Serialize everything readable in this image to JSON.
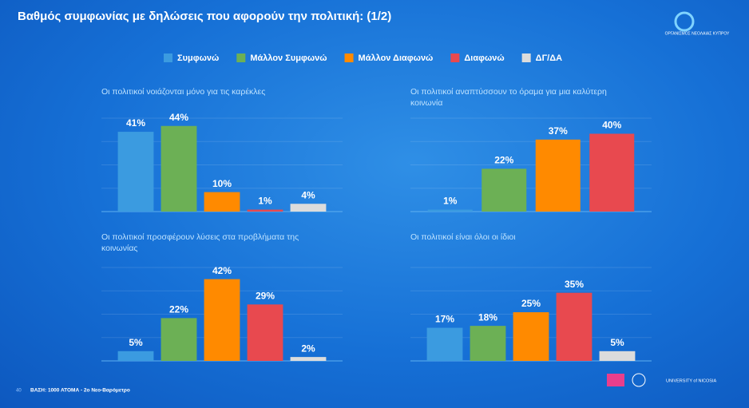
{
  "title": "Βαθμός συμφωνίας με δηλώσεις που αφορούν την πολιτική: (1/2)",
  "logo_text": "ΟΡΓΑΝΙΣΜΟΣ ΝΕΟΛΑΙΑΣ ΚΥΠΡΟΥ",
  "legend": {
    "series": [
      {
        "name": "Συμφωνώ",
        "color": "#3b9be0"
      },
      {
        "name": "Μάλλον Συμφωνώ",
        "color": "#6cb055"
      },
      {
        "name": "Μάλλον Διαφωνώ",
        "color": "#ff8a00"
      },
      {
        "name": "Διαφωνώ",
        "color": "#e8494f"
      },
      {
        "name": "ΔΓ/ΔΑ",
        "color": "#dcdcdc"
      }
    ]
  },
  "chart_data": [
    {
      "type": "bar",
      "title": "Οι πολιτικοί νοιάζονται μόνο για τις καρέκλες",
      "values": [
        41,
        44,
        10,
        1,
        4
      ],
      "value_labels": [
        "41%",
        "44%",
        "10%",
        "1%",
        "4%"
      ],
      "ylim": [
        0,
        48
      ],
      "yticks": [
        0,
        12,
        24,
        36,
        48
      ],
      "grid": true
    },
    {
      "type": "bar",
      "title": "Οι πολιτικοί αναπτύσσουν το όραμα για μια καλύτερη κοινωνία",
      "values": [
        1,
        22,
        37,
        40
      ],
      "value_labels": [
        "1%",
        "22%",
        "37%",
        "40%"
      ],
      "ylim": [
        0,
        48
      ],
      "yticks": [
        0,
        12,
        24,
        36,
        48
      ],
      "grid": true
    },
    {
      "type": "bar",
      "title": "Οι πολιτικοί προσφέρουν λύσεις στα προβλήματα της κοινωνίας",
      "values": [
        5,
        22,
        42,
        29,
        2
      ],
      "value_labels": [
        "5%",
        "22%",
        "42%",
        "29%",
        "2%"
      ],
      "ylim": [
        0,
        48
      ],
      "yticks": [
        0,
        12,
        24,
        36,
        48
      ],
      "grid": true
    },
    {
      "type": "bar",
      "title": "Οι πολιτικοί είναι όλοι οι ίδιοι",
      "values": [
        17,
        18,
        25,
        35,
        5
      ],
      "value_labels": [
        "17%",
        "18%",
        "25%",
        "35%",
        "5%"
      ],
      "ylim": [
        0,
        48
      ],
      "yticks": [
        0,
        12,
        24,
        36,
        48
      ],
      "grid": true
    }
  ],
  "footer": {
    "page": "40",
    "base": "ΒΑΣΗ: 1000 ΑΤΟΜΑ - 2ο Νεο-Βαρόμετρο",
    "university": "UNIVERSITY of NICOSIA"
  }
}
